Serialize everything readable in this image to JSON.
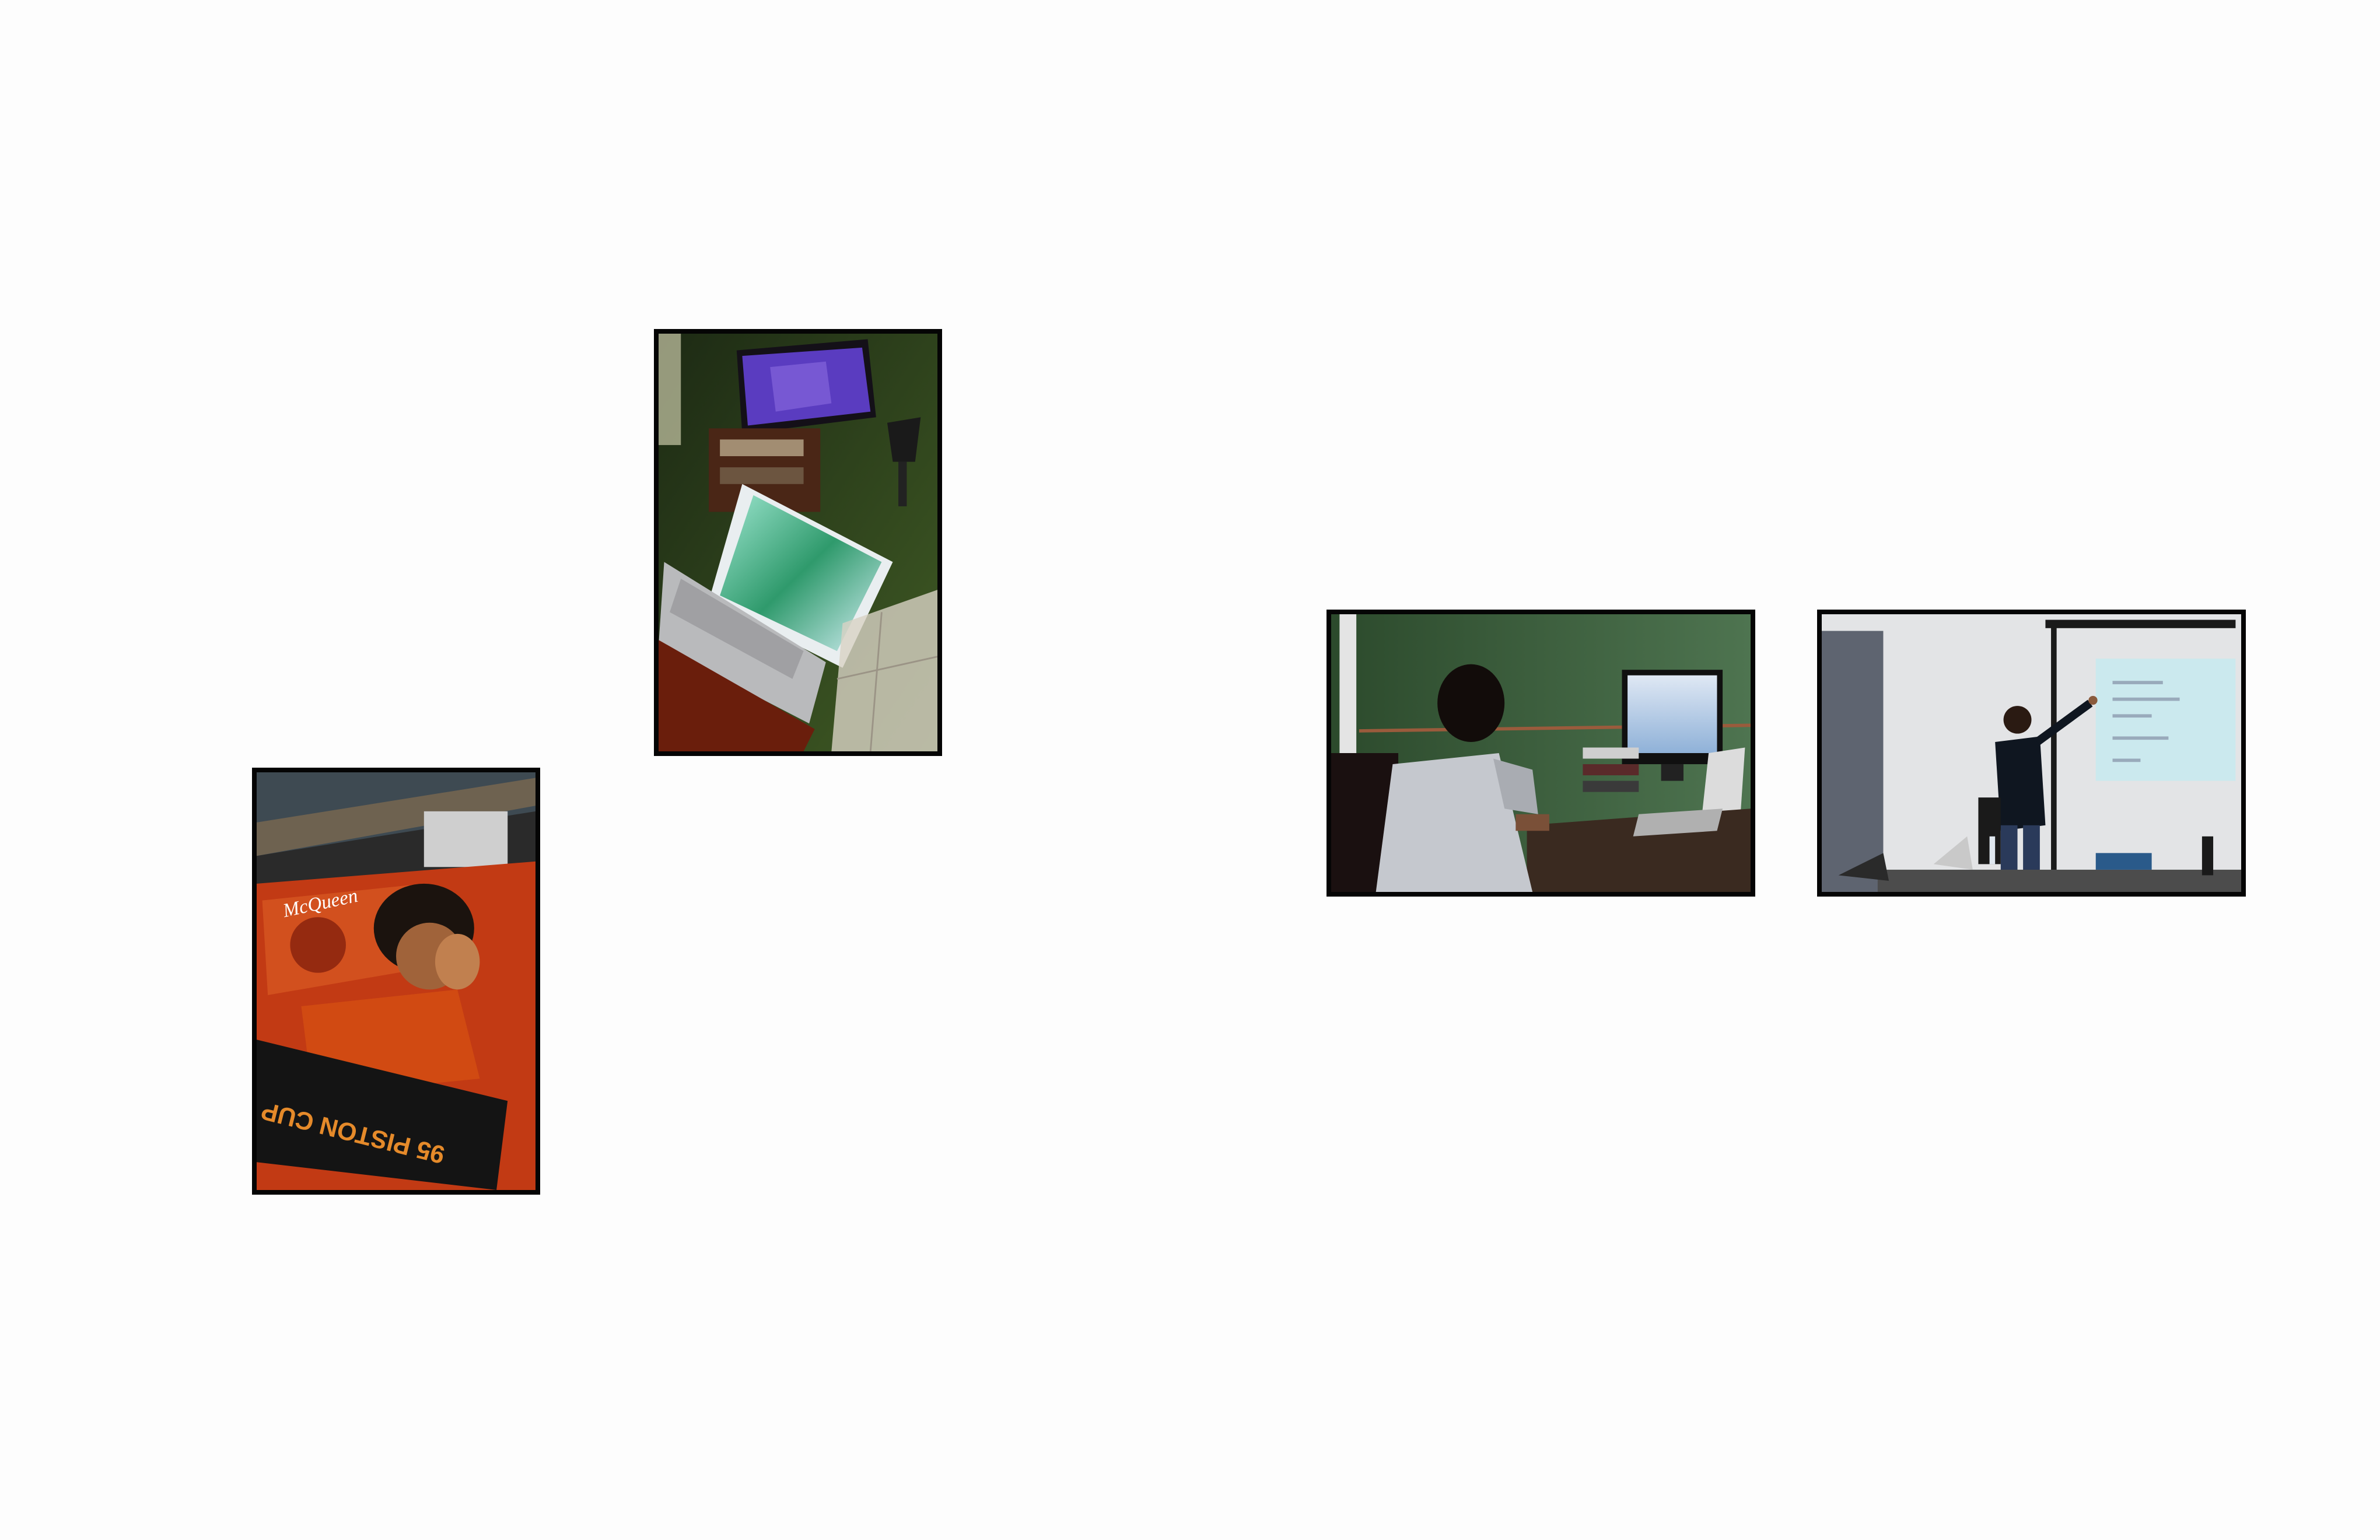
{
  "photos": [
    {
      "id": "laptop",
      "icon": "laptop-tv-living-room-photo"
    },
    {
      "id": "kid",
      "icon": "child-resting-on-pillow-photo",
      "pillow_text": "McQueen",
      "shirt_text": "95 PISTON CUP"
    },
    {
      "id": "desk",
      "icon": "person-at-computer-desk-photo"
    },
    {
      "id": "pres",
      "icon": "presenter-at-projector-screen-photo"
    }
  ],
  "colors": {
    "background": "#fdfdfd",
    "frame": "#050505"
  }
}
